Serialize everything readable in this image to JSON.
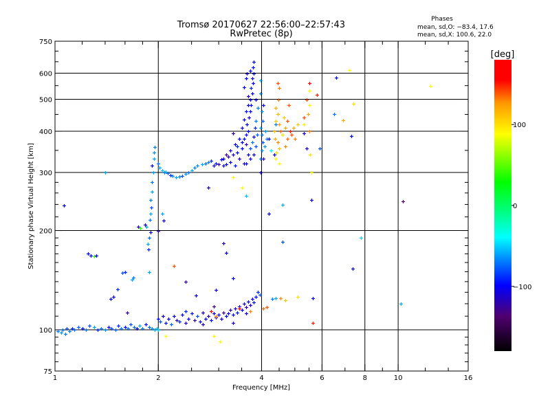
{
  "chart_data": {
    "type": "scatter",
    "title": "Tromsø 20170627 22:56:00–22:57:43",
    "subtitle": "RwPretec (8p)",
    "stats": {
      "heading": "Phases",
      "line_o": "mean, sd,O: −83.4, 17.6",
      "line_x": "mean, sd,X: 100.6, 22.0"
    },
    "xlabel": "Frequency [MHz]",
    "ylabel": "Stationary phase Virtual Height [km]",
    "xscale": "log",
    "yscale": "log",
    "xlim": [
      1,
      16
    ],
    "ylim": [
      75,
      750
    ],
    "xticks": [
      1,
      2,
      4,
      6,
      8,
      10,
      16
    ],
    "xtick_labels": [
      "1",
      "2",
      "4",
      "6",
      "8",
      "10",
      "16"
    ],
    "yticks": [
      75,
      100,
      200,
      300,
      400,
      500,
      600,
      750
    ],
    "ytick_labels": [
      "75",
      "100",
      "200",
      "300",
      "400",
      "500",
      "600",
      "750"
    ],
    "xgrid": [
      2,
      4,
      6,
      8,
      10
    ],
    "ygrid": [
      100,
      200,
      300,
      400,
      500,
      600
    ],
    "colorbar": {
      "label": "[deg]",
      "range": [
        -180,
        180
      ],
      "ticks": [
        100,
        0,
        -100
      ],
      "tick_labels": [
        "100",
        "0",
        "−100"
      ]
    },
    "point_format": [
      "frequency_MHz",
      "height_km",
      "phase_deg"
    ],
    "points": [
      [
        1.02,
        99,
        -70
      ],
      [
        1.04,
        98,
        -65
      ],
      [
        1.05,
        100,
        -75
      ],
      [
        1.07,
        97,
        -70
      ],
      [
        1.08,
        101,
        -80
      ],
      [
        1.1,
        99,
        -70
      ],
      [
        1.12,
        101,
        -90
      ],
      [
        1.14,
        100,
        -70
      ],
      [
        1.17,
        102,
        -75
      ],
      [
        1.2,
        101,
        -95
      ],
      [
        1.23,
        100,
        -70
      ],
      [
        1.26,
        103,
        -80
      ],
      [
        1.3,
        102,
        -60
      ],
      [
        1.33,
        100,
        -90
      ],
      [
        1.36,
        101,
        -70
      ],
      [
        1.4,
        100,
        -65
      ],
      [
        1.43,
        102,
        -100
      ],
      [
        1.46,
        101,
        -80
      ],
      [
        1.5,
        100,
        -75
      ],
      [
        1.53,
        103,
        -90
      ],
      [
        1.56,
        101,
        -70
      ],
      [
        1.6,
        102,
        -95
      ],
      [
        1.63,
        101,
        -70
      ],
      [
        1.66,
        104,
        -80
      ],
      [
        1.7,
        102,
        -75
      ],
      [
        1.73,
        101,
        -100
      ],
      [
        1.76,
        103,
        -60
      ],
      [
        1.8,
        101,
        -70
      ],
      [
        1.84,
        104,
        -95
      ],
      [
        1.88,
        102,
        -75
      ],
      [
        1.92,
        101,
        -65
      ],
      [
        1.95,
        100,
        -60
      ],
      [
        1.98,
        101,
        -55
      ],
      [
        2.0,
        100,
        -50
      ],
      [
        2.0,
        108,
        -100
      ],
      [
        2.03,
        106,
        -80
      ],
      [
        2.06,
        110,
        -110
      ],
      [
        2.1,
        105,
        -95
      ],
      [
        2.14,
        108,
        -100
      ],
      [
        2.18,
        104,
        -75
      ],
      [
        2.22,
        110,
        -105
      ],
      [
        2.26,
        107,
        -110
      ],
      [
        2.3,
        106,
        -90
      ],
      [
        2.35,
        111,
        -100
      ],
      [
        2.4,
        105,
        -115
      ],
      [
        2.45,
        108,
        -100
      ],
      [
        2.5,
        112,
        -95
      ],
      [
        2.55,
        107,
        -120
      ],
      [
        2.6,
        110,
        -80
      ],
      [
        2.65,
        106,
        -100
      ],
      [
        2.7,
        113,
        -110
      ],
      [
        2.75,
        108,
        -100
      ],
      [
        2.8,
        110,
        -120
      ],
      [
        2.85,
        107,
        -95
      ],
      [
        2.9,
        112,
        -105
      ],
      [
        2.95,
        109,
        -120
      ],
      [
        3.0,
        111,
        -100
      ],
      [
        3.05,
        108,
        -110
      ],
      [
        3.1,
        113,
        -125
      ],
      [
        3.15,
        110,
        -100
      ],
      [
        3.2,
        112,
        -105
      ],
      [
        3.25,
        115,
        -120
      ],
      [
        3.3,
        111,
        -100
      ],
      [
        3.35,
        116,
        -110
      ],
      [
        3.4,
        113,
        -95
      ],
      [
        3.45,
        118,
        -115
      ],
      [
        3.5,
        115,
        -100
      ],
      [
        3.55,
        120,
        -105
      ],
      [
        3.6,
        117,
        -120
      ],
      [
        3.65,
        122,
        -100
      ],
      [
        3.7,
        119,
        -110
      ],
      [
        3.75,
        124,
        -100
      ],
      [
        3.8,
        121,
        -95
      ],
      [
        3.85,
        126,
        -100
      ],
      [
        3.9,
        130,
        -90
      ],
      [
        3.95,
        128,
        -80
      ],
      [
        2.9,
        118,
        -130
      ],
      [
        3.3,
        105,
        -115
      ],
      [
        3.6,
        112,
        -110
      ],
      [
        2.4,
        114,
        -90
      ],
      [
        2.7,
        104,
        -110
      ],
      [
        2.85,
        114,
        170
      ],
      [
        3.45,
        116,
        175
      ],
      [
        2.95,
        110,
        130
      ],
      [
        3.7,
        114,
        130
      ],
      [
        4.05,
        116,
        135
      ],
      [
        4.15,
        117,
        140
      ],
      [
        2.1,
        96,
        90
      ],
      [
        2.9,
        96,
        90
      ],
      [
        3.03,
        92,
        85
      ],
      [
        2.4,
        140,
        -120
      ],
      [
        2.22,
        156,
        140
      ],
      [
        2.58,
        127,
        -105
      ],
      [
        3.15,
        171,
        -100
      ],
      [
        3.3,
        143,
        -100
      ],
      [
        2.95,
        132,
        -110
      ],
      [
        4.4,
        125,
        -60
      ],
      [
        1.87,
        175,
        -90
      ],
      [
        1.86,
        182,
        -60
      ],
      [
        1.88,
        190,
        -75
      ],
      [
        1.9,
        198,
        -100
      ],
      [
        1.85,
        205,
        -60
      ],
      [
        1.83,
        208,
        -110
      ],
      [
        1.89,
        215,
        -70
      ],
      [
        1.9,
        225,
        -60
      ],
      [
        1.91,
        235,
        -80
      ],
      [
        1.9,
        248,
        -70
      ],
      [
        1.92,
        262,
        -60
      ],
      [
        1.92,
        280,
        -70
      ],
      [
        1.93,
        300,
        -60
      ],
      [
        1.92,
        315,
        -100
      ],
      [
        1.94,
        330,
        -60
      ],
      [
        1.94,
        345,
        -65
      ],
      [
        1.95,
        358,
        -70
      ],
      [
        1.77,
        203,
        40
      ],
      [
        1.75,
        205,
        -110
      ],
      [
        2.0,
        320,
        -70
      ],
      [
        2.02,
        310,
        -60
      ],
      [
        2.05,
        305,
        -55
      ],
      [
        2.08,
        300,
        -70
      ],
      [
        2.1,
        302,
        -60
      ],
      [
        2.13,
        298,
        -75
      ],
      [
        2.17,
        295,
        -90
      ],
      [
        2.2,
        293,
        -65
      ],
      [
        2.25,
        290,
        -60
      ],
      [
        2.3,
        291,
        -70
      ],
      [
        2.35,
        293,
        -80
      ],
      [
        2.4,
        297,
        -65
      ],
      [
        2.45,
        300,
        -70
      ],
      [
        2.5,
        305,
        -60
      ],
      [
        2.55,
        310,
        -70
      ],
      [
        2.6,
        315,
        -65
      ],
      [
        2.68,
        318,
        -60
      ],
      [
        2.75,
        320,
        -75
      ],
      [
        2.8,
        322,
        -70
      ],
      [
        2.85,
        325,
        -90
      ],
      [
        2.9,
        315,
        -110
      ],
      [
        2.95,
        320,
        -100
      ],
      [
        3.0,
        318,
        -120
      ],
      [
        3.05,
        328,
        -100
      ],
      [
        3.1,
        315,
        -105
      ],
      [
        3.1,
        330,
        -110
      ],
      [
        3.15,
        318,
        -100
      ],
      [
        3.2,
        335,
        -120
      ],
      [
        3.25,
        322,
        -100
      ],
      [
        3.3,
        340,
        -110
      ],
      [
        3.35,
        315,
        -95
      ],
      [
        3.4,
        345,
        -100
      ],
      [
        3.45,
        330,
        -120
      ],
      [
        3.5,
        355,
        -100
      ],
      [
        3.55,
        320,
        -110
      ],
      [
        3.4,
        360,
        -90
      ],
      [
        3.5,
        370,
        -105
      ],
      [
        3.55,
        380,
        -100
      ],
      [
        3.6,
        365,
        -120
      ],
      [
        3.6,
        390,
        -100
      ],
      [
        3.65,
        400,
        -95
      ],
      [
        3.62,
        420,
        -100
      ],
      [
        3.68,
        440,
        -110
      ],
      [
        3.7,
        460,
        -100
      ],
      [
        3.72,
        480,
        -95
      ],
      [
        3.7,
        500,
        -100
      ],
      [
        3.75,
        520,
        -100
      ],
      [
        3.72,
        540,
        -90
      ],
      [
        3.78,
        560,
        -100
      ],
      [
        3.76,
        580,
        -105
      ],
      [
        3.8,
        600,
        -100
      ],
      [
        3.78,
        625,
        -95
      ],
      [
        3.79,
        650,
        -100
      ],
      [
        3.65,
        340,
        -100
      ],
      [
        3.7,
        355,
        -80
      ],
      [
        3.75,
        370,
        -70
      ],
      [
        3.8,
        385,
        -100
      ],
      [
        3.82,
        410,
        -90
      ],
      [
        3.85,
        430,
        -70
      ],
      [
        3.6,
        320,
        -100
      ],
      [
        3.7,
        330,
        -110
      ],
      [
        3.8,
        340,
        -100
      ],
      [
        3.85,
        360,
        -80
      ],
      [
        3.88,
        390,
        -75
      ],
      [
        3.9,
        470,
        -70
      ],
      [
        3.85,
        500,
        -100
      ],
      [
        3.5,
        410,
        -110
      ],
      [
        3.55,
        435,
        -100
      ],
      [
        3.6,
        460,
        -95
      ],
      [
        3.65,
        480,
        -100
      ],
      [
        3.66,
        510,
        -110
      ],
      [
        3.55,
        545,
        -100
      ],
      [
        3.45,
        380,
        -100
      ],
      [
        3.35,
        365,
        -110
      ],
      [
        3.3,
        395,
        -120
      ],
      [
        3.25,
        350,
        -105
      ],
      [
        3.15,
        340,
        -130
      ],
      [
        3.62,
        600,
        -110
      ],
      [
        3.6,
        580,
        -100
      ],
      [
        3.7,
        610,
        -100
      ],
      [
        3.98,
        330,
        -70
      ],
      [
        4.0,
        350,
        -60
      ],
      [
        4.02,
        370,
        -80
      ],
      [
        4.0,
        390,
        -65
      ],
      [
        3.98,
        410,
        -60
      ],
      [
        4.03,
        430,
        -75
      ],
      [
        4.0,
        460,
        -60
      ],
      [
        4.05,
        480,
        -100
      ],
      [
        3.97,
        520,
        -70
      ],
      [
        3.98,
        570,
        -60
      ],
      [
        4.1,
        400,
        -60
      ],
      [
        4.15,
        380,
        -70
      ],
      [
        4.05,
        330,
        -110
      ],
      [
        4.08,
        360,
        -65
      ],
      [
        3.97,
        300,
        -110
      ],
      [
        4.45,
        560,
        140
      ],
      [
        4.5,
        540,
        130
      ],
      [
        4.48,
        500,
        135
      ],
      [
        4.4,
        470,
        120
      ],
      [
        4.45,
        450,
        115
      ],
      [
        4.4,
        430,
        110
      ],
      [
        4.5,
        420,
        125
      ],
      [
        4.55,
        400,
        135
      ],
      [
        4.35,
        400,
        110
      ],
      [
        4.38,
        380,
        120
      ],
      [
        4.45,
        370,
        130
      ],
      [
        4.5,
        355,
        110
      ],
      [
        4.42,
        345,
        100
      ],
      [
        4.65,
        440,
        110
      ],
      [
        4.7,
        410,
        120
      ],
      [
        4.6,
        390,
        100
      ],
      [
        4.75,
        380,
        135
      ],
      [
        4.7,
        360,
        130
      ],
      [
        4.75,
        430,
        140
      ],
      [
        4.85,
        400,
        150
      ],
      [
        4.9,
        390,
        140
      ],
      [
        4.95,
        410,
        120
      ],
      [
        5.0,
        380,
        130
      ],
      [
        5.1,
        420,
        110
      ],
      [
        5.3,
        440,
        140
      ],
      [
        5.45,
        450,
        120
      ],
      [
        5.5,
        480,
        90
      ],
      [
        5.4,
        500,
        145
      ],
      [
        5.3,
        420,
        95
      ],
      [
        5.5,
        400,
        130
      ],
      [
        4.25,
        350,
        -40
      ],
      [
        4.4,
        420,
        -70
      ],
      [
        4.4,
        330,
        90
      ],
      [
        4.8,
        480,
        140
      ],
      [
        5.5,
        560,
        160
      ],
      [
        5.5,
        530,
        90
      ],
      [
        4.5,
        320,
        85
      ],
      [
        5.4,
        355,
        -110
      ],
      [
        5.3,
        395,
        -110
      ],
      [
        5.6,
        300,
        85
      ],
      [
        5.55,
        340,
        100
      ],
      [
        4.2,
        380,
        -100
      ],
      [
        4.35,
        340,
        -100
      ],
      [
        3.5,
        270,
        85
      ],
      [
        3.6,
        255,
        -55
      ],
      [
        4.6,
        240,
        -60
      ],
      [
        4.2,
        225,
        -100
      ],
      [
        2.8,
        270,
        -110
      ],
      [
        5.8,
        515,
        150
      ],
      [
        5.9,
        355,
        -80
      ],
      [
        1.06,
        238,
        -100
      ],
      [
        1.4,
        300,
        -60
      ],
      [
        10.3,
        245,
        -140
      ],
      [
        10.2,
        120,
        -60
      ],
      [
        7.8,
        190,
        -50
      ],
      [
        7.37,
        153,
        -100
      ],
      [
        6.6,
        583,
        -100
      ],
      [
        7.2,
        613,
        90
      ],
      [
        12.4,
        548,
        90
      ],
      [
        5.65,
        105,
        150
      ],
      [
        7.3,
        387,
        -100
      ],
      [
        7.4,
        484,
        100
      ],
      [
        6.9,
        432,
        120
      ],
      [
        6.5,
        450,
        -70
      ],
      [
        4.6,
        185,
        -80
      ],
      [
        5.6,
        248,
        -100
      ],
      [
        5.65,
        125,
        -100
      ],
      [
        4.3,
        124,
        -70
      ],
      [
        4.55,
        125,
        130
      ],
      [
        4.7,
        123,
        110
      ],
      [
        5.1,
        126,
        100
      ],
      [
        3.3,
        290,
        90
      ],
      [
        3.1,
        183,
        -120
      ],
      [
        1.25,
        170,
        -100
      ],
      [
        1.27,
        168,
        -100
      ],
      [
        1.3,
        167,
        40
      ],
      [
        1.32,
        168,
        -100
      ],
      [
        1.45,
        124,
        -100
      ],
      [
        1.48,
        126,
        -100
      ],
      [
        1.52,
        133,
        -90
      ],
      [
        1.57,
        149,
        -80
      ],
      [
        1.6,
        150,
        -90
      ],
      [
        1.69,
        144,
        -70
      ],
      [
        1.68,
        142,
        -60
      ],
      [
        1.62,
        113,
        -120
      ],
      [
        1.88,
        150,
        -60
      ],
      [
        2.05,
        225,
        -60
      ],
      [
        2.07,
        214,
        -110
      ],
      [
        2.0,
        200,
        -120
      ]
    ]
  }
}
